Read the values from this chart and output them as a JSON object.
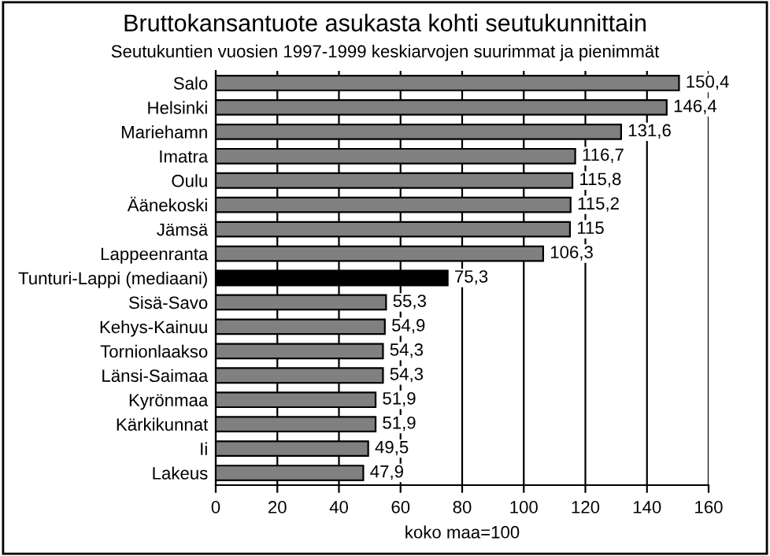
{
  "chart_data": {
    "type": "bar",
    "orientation": "horizontal",
    "title": "Bruttokansantuote asukasta kohti seutukunnittain",
    "subtitle": "Seutukuntien vuosien 1997-1999 keskiarvojen suurimmat ja pienimmät",
    "xlabel": "koko maa=100",
    "categories": [
      "Salo",
      "Helsinki",
      "Mariehamn",
      "Imatra",
      "Oulu",
      "Äänekoski",
      "Jämsä",
      "Lappeenranta",
      "Tunturi-Lappi (mediaani)",
      "Sisä-Savo",
      "Kehys-Kainuu",
      "Tornionlaakso",
      "Länsi-Saimaa",
      "Kyrönmaa",
      "Kärkikunnat",
      "Ii",
      "Lakeus"
    ],
    "values": [
      150.4,
      146.4,
      131.6,
      116.7,
      115.8,
      115.2,
      115,
      106.3,
      75.3,
      55.3,
      54.9,
      54.3,
      54.3,
      51.9,
      51.9,
      49.5,
      47.9
    ],
    "value_labels": [
      "150,4",
      "146,4",
      "131,6",
      "116,7",
      "115,8",
      "115,2",
      "115",
      "106,3",
      "75,3",
      "55,3",
      "54,9",
      "54,3",
      "54,3",
      "51,9",
      "51,9",
      "49,5",
      "47,9"
    ],
    "colors": [
      "#808080",
      "#808080",
      "#808080",
      "#808080",
      "#808080",
      "#808080",
      "#808080",
      "#808080",
      "#000000",
      "#808080",
      "#808080",
      "#808080",
      "#808080",
      "#808080",
      "#808080",
      "#808080",
      "#808080"
    ],
    "xlim": [
      0,
      160
    ],
    "xticks": [
      0,
      20,
      40,
      60,
      80,
      100,
      120,
      140,
      160
    ],
    "grid": "x",
    "legend": false
  }
}
